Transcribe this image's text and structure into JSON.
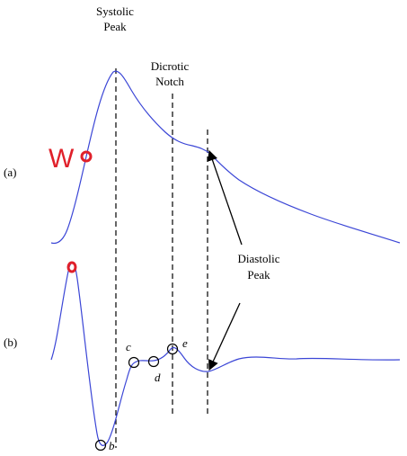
{
  "labels": {
    "systolic_line1": "Systolic",
    "systolic_line2": "Peak",
    "dicrotic_line1": "Dicrotic",
    "dicrotic_line2": "Notch",
    "diastolic_line1": "Diastolic",
    "diastolic_line2": "Peak",
    "panel_a": "(a)",
    "panel_b": "(b)",
    "w_marker": "W"
  },
  "points": {
    "b": "b",
    "c": "c",
    "d": "d",
    "e": "e"
  },
  "colors": {
    "waveform": "#3b46d6",
    "marker": "#e0202a",
    "ink": "#000000"
  }
}
